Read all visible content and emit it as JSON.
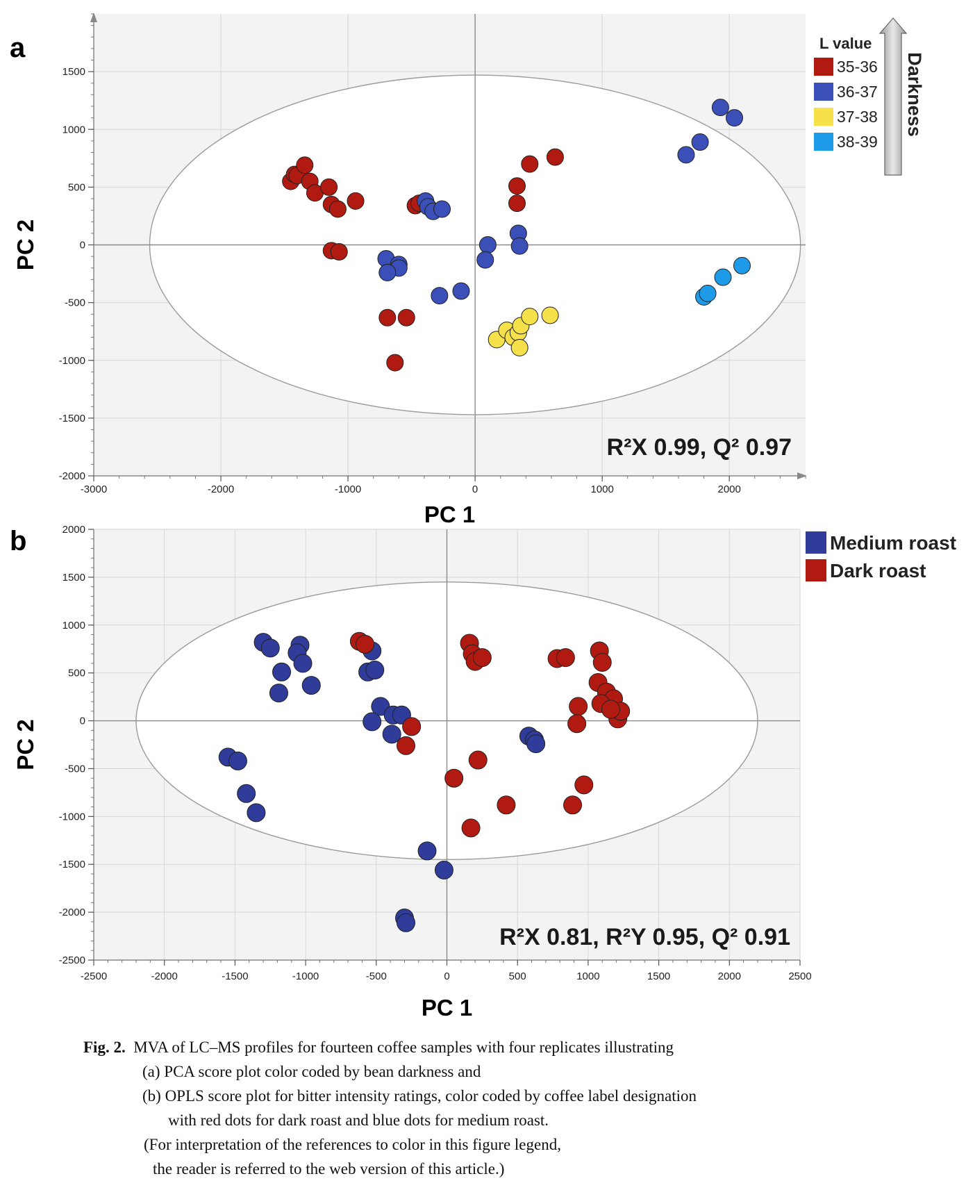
{
  "caption": {
    "label": "Fig. 2.",
    "line1": "MVA of LC–MS profiles for fourteen coffee samples with four replicates illustrating",
    "line2": "(a) PCA score plot color coded by bean darkness and",
    "line3": "(b) OPLS score plot for bitter intensity ratings, color coded by coffee label designation",
    "line4": "with red dots for dark roast and blue dots for medium roast.",
    "line5": "(For interpretation of the references to color in this figure legend,",
    "line6": "the reader is referred to the web version of this article.)"
  },
  "chart_data": [
    {
      "panel": "a",
      "type": "scatter",
      "title": "",
      "xlabel": "PC 1",
      "ylabel": "PC 2",
      "xlim": [
        -3000,
        2600
      ],
      "ylim": [
        -2000,
        2000
      ],
      "xticks": [
        -3000,
        -2000,
        -1000,
        0,
        1000,
        2000
      ],
      "yticks": [
        -2000,
        -1500,
        -1000,
        -500,
        0,
        500,
        1000,
        1500
      ],
      "grid": true,
      "ellipse": {
        "cx": 0,
        "cy": 0,
        "rx": 2560,
        "ry": 1470
      },
      "annotation": "R²X 0.99, Q² 0.97",
      "legend": {
        "title": "L value",
        "arrow_label": "Darkness",
        "placement": "top-right",
        "entries": [
          {
            "label": "35-36",
            "color": "#b01a10"
          },
          {
            "label": "36-37",
            "color": "#3a4fb8"
          },
          {
            "label": "37-38",
            "color": "#f7e14a"
          },
          {
            "label": "38-39",
            "color": "#1e9be8"
          }
        ]
      },
      "series": [
        {
          "name": "35-36",
          "color": "#b01a10",
          "points": [
            [
              -1450,
              550
            ],
            [
              -1420,
              610
            ],
            [
              -1400,
              600
            ],
            [
              -1340,
              690
            ],
            [
              -1300,
              550
            ],
            [
              -1260,
              450
            ],
            [
              -1150,
              500
            ],
            [
              -1130,
              350
            ],
            [
              -1080,
              310
            ],
            [
              -940,
              380
            ],
            [
              -1130,
              -50
            ],
            [
              -1070,
              -60
            ],
            [
              -470,
              340
            ],
            [
              -440,
              360
            ],
            [
              -690,
              -630
            ],
            [
              -540,
              -630
            ],
            [
              -630,
              -1020
            ],
            [
              330,
              510
            ],
            [
              330,
              360
            ],
            [
              430,
              700
            ],
            [
              630,
              760
            ]
          ]
        },
        {
          "name": "36-37",
          "color": "#3a4fb8",
          "points": [
            [
              -700,
              -120
            ],
            [
              -600,
              -170
            ],
            [
              -600,
              -200
            ],
            [
              -690,
              -240
            ],
            [
              -390,
              380
            ],
            [
              -370,
              330
            ],
            [
              -330,
              290
            ],
            [
              -260,
              310
            ],
            [
              -280,
              -440
            ],
            [
              -110,
              -400
            ],
            [
              100,
              0
            ],
            [
              80,
              -130
            ],
            [
              340,
              100
            ],
            [
              350,
              -10
            ],
            [
              1660,
              780
            ],
            [
              1770,
              890
            ],
            [
              1930,
              1190
            ],
            [
              2040,
              1100
            ]
          ]
        },
        {
          "name": "37-38",
          "color": "#f7e14a",
          "points": [
            [
              170,
              -820
            ],
            [
              250,
              -740
            ],
            [
              300,
              -800
            ],
            [
              340,
              -760
            ],
            [
              350,
              -890
            ],
            [
              360,
              -700
            ],
            [
              430,
              -620
            ],
            [
              590,
              -610
            ]
          ]
        },
        {
          "name": "38-39",
          "color": "#1e9be8",
          "points": [
            [
              1800,
              -450
            ],
            [
              1830,
              -420
            ],
            [
              1950,
              -280
            ],
            [
              2100,
              -180
            ]
          ]
        }
      ]
    },
    {
      "panel": "b",
      "type": "scatter",
      "title": "",
      "xlabel": "PC 1",
      "ylabel": "PC 2",
      "xlim": [
        -2500,
        2500
      ],
      "ylim": [
        -2500,
        2000
      ],
      "xticks": [
        -2500,
        -2000,
        -1500,
        -1000,
        -500,
        0,
        500,
        1000,
        1500,
        2000,
        2500
      ],
      "yticks": [
        -2500,
        -2000,
        -1500,
        -1000,
        -500,
        0,
        500,
        1000,
        1500,
        2000
      ],
      "grid": true,
      "ellipse": {
        "cx": 0,
        "cy": 0,
        "rx": 2200,
        "ry": 1450
      },
      "annotation": "R²X 0.81, R²Y 0.95, Q² 0.91",
      "legend": {
        "placement": "top-right",
        "entries": [
          {
            "label": "Medium roast",
            "color": "#2f3c9a"
          },
          {
            "label": "Dark roast",
            "color": "#b01a10"
          }
        ]
      },
      "series": [
        {
          "name": "Medium roast",
          "color": "#2f3c9a",
          "points": [
            [
              -1300,
              820
            ],
            [
              -1250,
              760
            ],
            [
              -1170,
              510
            ],
            [
              -1190,
              290
            ],
            [
              -1040,
              790
            ],
            [
              -1060,
              710
            ],
            [
              -1020,
              600
            ],
            [
              -960,
              370
            ],
            [
              -530,
              730
            ],
            [
              -560,
              510
            ],
            [
              -510,
              530
            ],
            [
              -470,
              150
            ],
            [
              -530,
              -10
            ],
            [
              -380,
              60
            ],
            [
              -320,
              60
            ],
            [
              -390,
              -140
            ],
            [
              -1550,
              -380
            ],
            [
              -1480,
              -420
            ],
            [
              -1420,
              -760
            ],
            [
              -1350,
              -960
            ],
            [
              -140,
              -1360
            ],
            [
              -20,
              -1560
            ],
            [
              -300,
              -2060
            ],
            [
              -290,
              -2110
            ],
            [
              580,
              -160
            ],
            [
              620,
              -200
            ],
            [
              630,
              -240
            ]
          ]
        },
        {
          "name": "Dark roast",
          "color": "#b01a10",
          "points": [
            [
              -620,
              830
            ],
            [
              -580,
              800
            ],
            [
              160,
              810
            ],
            [
              180,
              700
            ],
            [
              200,
              620
            ],
            [
              250,
              660
            ],
            [
              780,
              650
            ],
            [
              840,
              660
            ],
            [
              1080,
              730
            ],
            [
              1100,
              610
            ],
            [
              1070,
              400
            ],
            [
              1130,
              300
            ],
            [
              1180,
              230
            ],
            [
              1090,
              180
            ],
            [
              1210,
              20
            ],
            [
              1230,
              100
            ],
            [
              1160,
              120
            ],
            [
              930,
              150
            ],
            [
              920,
              -30
            ],
            [
              -250,
              -60
            ],
            [
              -290,
              -260
            ],
            [
              50,
              -600
            ],
            [
              220,
              -410
            ],
            [
              420,
              -880
            ],
            [
              170,
              -1120
            ],
            [
              890,
              -880
            ],
            [
              970,
              -670
            ]
          ]
        }
      ]
    }
  ]
}
